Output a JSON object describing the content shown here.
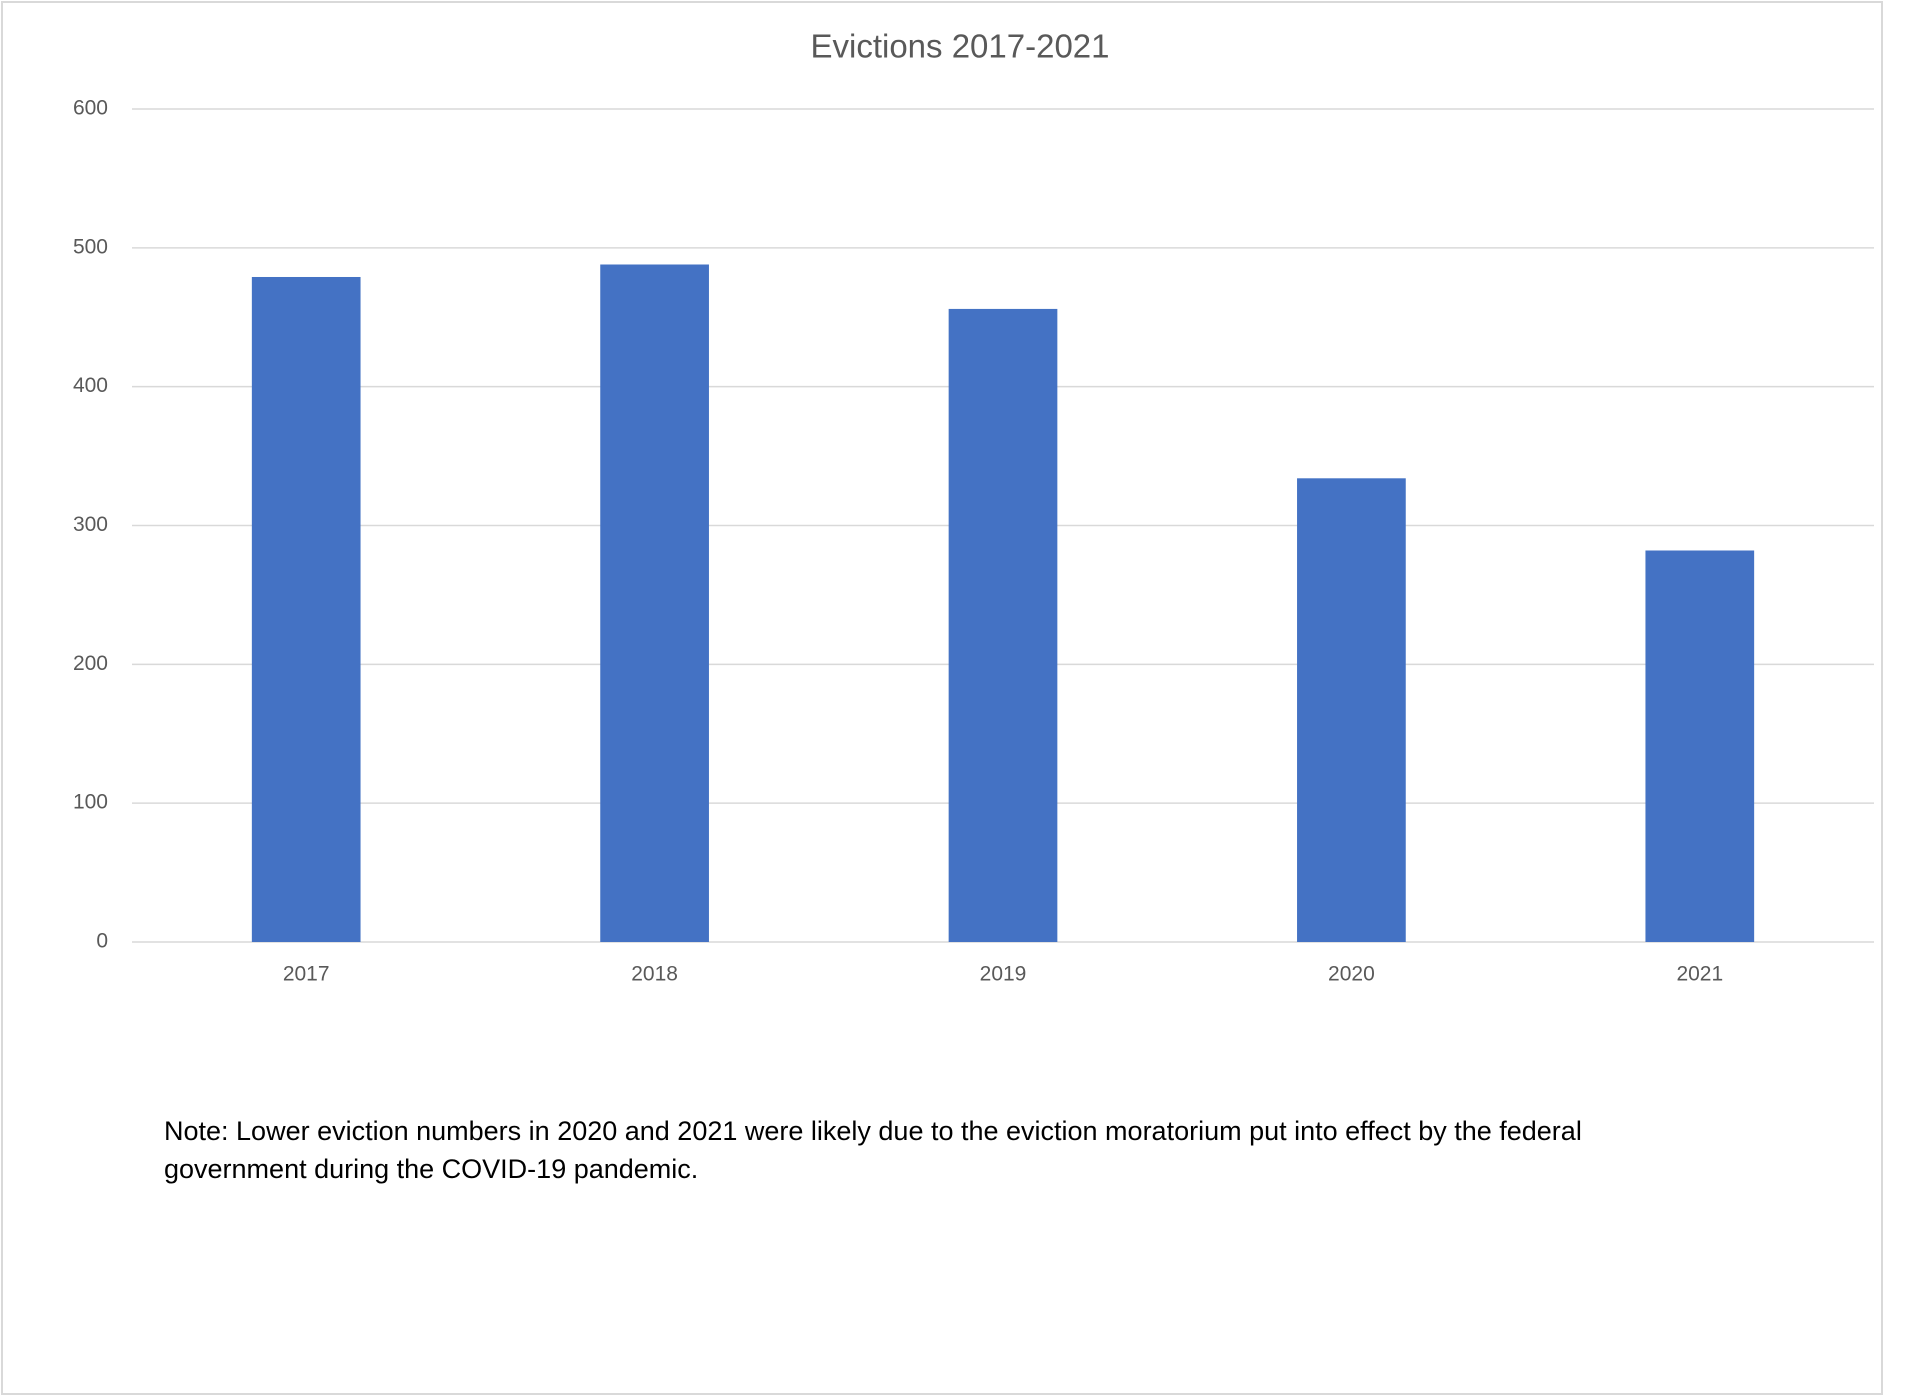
{
  "chart_data": {
    "type": "bar",
    "title": "Evictions 2017-2021",
    "categories": [
      "2017",
      "2018",
      "2019",
      "2020",
      "2021"
    ],
    "values": [
      479,
      488,
      456,
      334,
      282
    ],
    "color": "#4472c4",
    "ylim": [
      0,
      600
    ],
    "yticks": [
      0,
      100,
      200,
      300,
      400,
      500,
      600
    ],
    "grid": true,
    "note": "Note: Lower eviction numbers in 2020 and 2021 were likely due to the eviction moratorium put into effect by the federal government during the COVID-19 pandemic."
  }
}
